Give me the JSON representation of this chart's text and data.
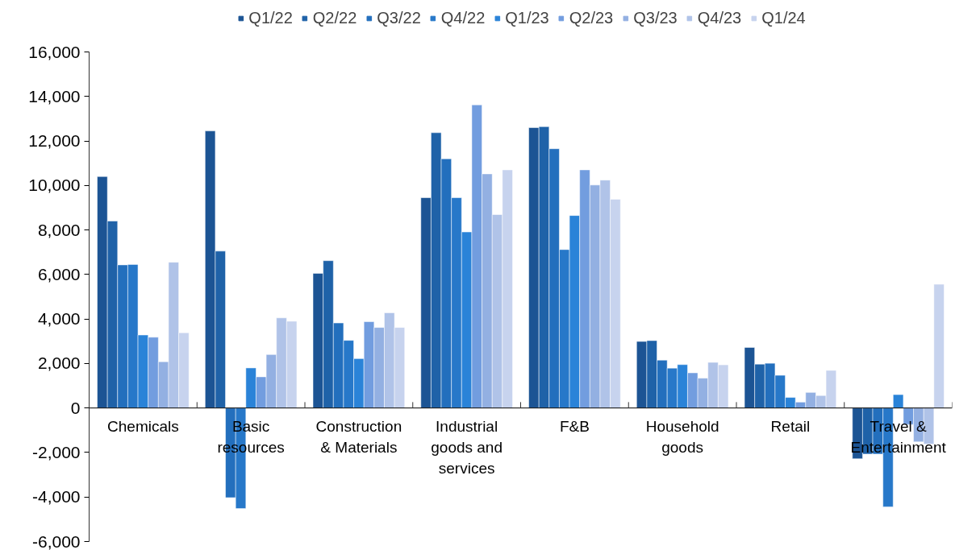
{
  "chart_data": {
    "type": "bar",
    "categories": [
      "Chemicals",
      "Basic resources",
      "Construction & Materials",
      "Industrial goods and services",
      "F&B",
      "Household goods",
      "Retail",
      "Travel & Entertainment"
    ],
    "series": [
      {
        "name": "Q1/22",
        "color": "#1c5494",
        "values": [
          10400,
          12450,
          6050,
          9450,
          12600,
          2990,
          2720,
          -2280
        ]
      },
      {
        "name": "Q2/22",
        "color": "#1f62a8",
        "values": [
          8400,
          7050,
          6620,
          12370,
          12640,
          3030,
          1970,
          -2070
        ]
      },
      {
        "name": "Q3/22",
        "color": "#236fbd",
        "values": [
          6430,
          -4030,
          3820,
          11200,
          11650,
          2150,
          2010,
          -2070
        ]
      },
      {
        "name": "Q4/22",
        "color": "#2778c9",
        "values": [
          6450,
          -4520,
          3040,
          9450,
          7120,
          1790,
          1470,
          -4440
        ]
      },
      {
        "name": "Q1/23",
        "color": "#2a83d8",
        "values": [
          3280,
          1800,
          2220,
          7910,
          8650,
          1950,
          475,
          600
        ]
      },
      {
        "name": "Q2/23",
        "color": "#729ddf",
        "values": [
          3180,
          1400,
          3880,
          13620,
          10700,
          1580,
          265,
          -740
        ]
      },
      {
        "name": "Q3/23",
        "color": "#93b0e2",
        "values": [
          2080,
          2400,
          3620,
          10520,
          10020,
          1340,
          700,
          -1520
        ]
      },
      {
        "name": "Q4/23",
        "color": "#b0c3e8",
        "values": [
          6550,
          4050,
          4280,
          8690,
          10240,
          2050,
          560,
          -1620
        ]
      },
      {
        "name": "Q1/24",
        "color": "#c7d3ee",
        "values": [
          3380,
          3900,
          3620,
          10700,
          9380,
          1940,
          1690,
          5560
        ]
      }
    ],
    "ylim": [
      -6000,
      16000
    ],
    "yticks": [
      {
        "value": -6000,
        "label": "-6,000"
      },
      {
        "value": -4000,
        "label": "-4,000"
      },
      {
        "value": -2000,
        "label": "-2,000"
      },
      0,
      {
        "value": 2000,
        "label": "2,000"
      },
      {
        "value": 4000,
        "label": "4,000"
      },
      {
        "value": 6000,
        "label": "6,000"
      },
      {
        "value": 8000,
        "label": "8,000"
      },
      {
        "value": 10000,
        "label": "10,000"
      },
      {
        "value": 12000,
        "label": "12,000"
      },
      {
        "value": 14000,
        "label": "14,000"
      },
      {
        "value": 16000,
        "label": "16,000"
      }
    ],
    "grid": false,
    "legend": "top"
  }
}
